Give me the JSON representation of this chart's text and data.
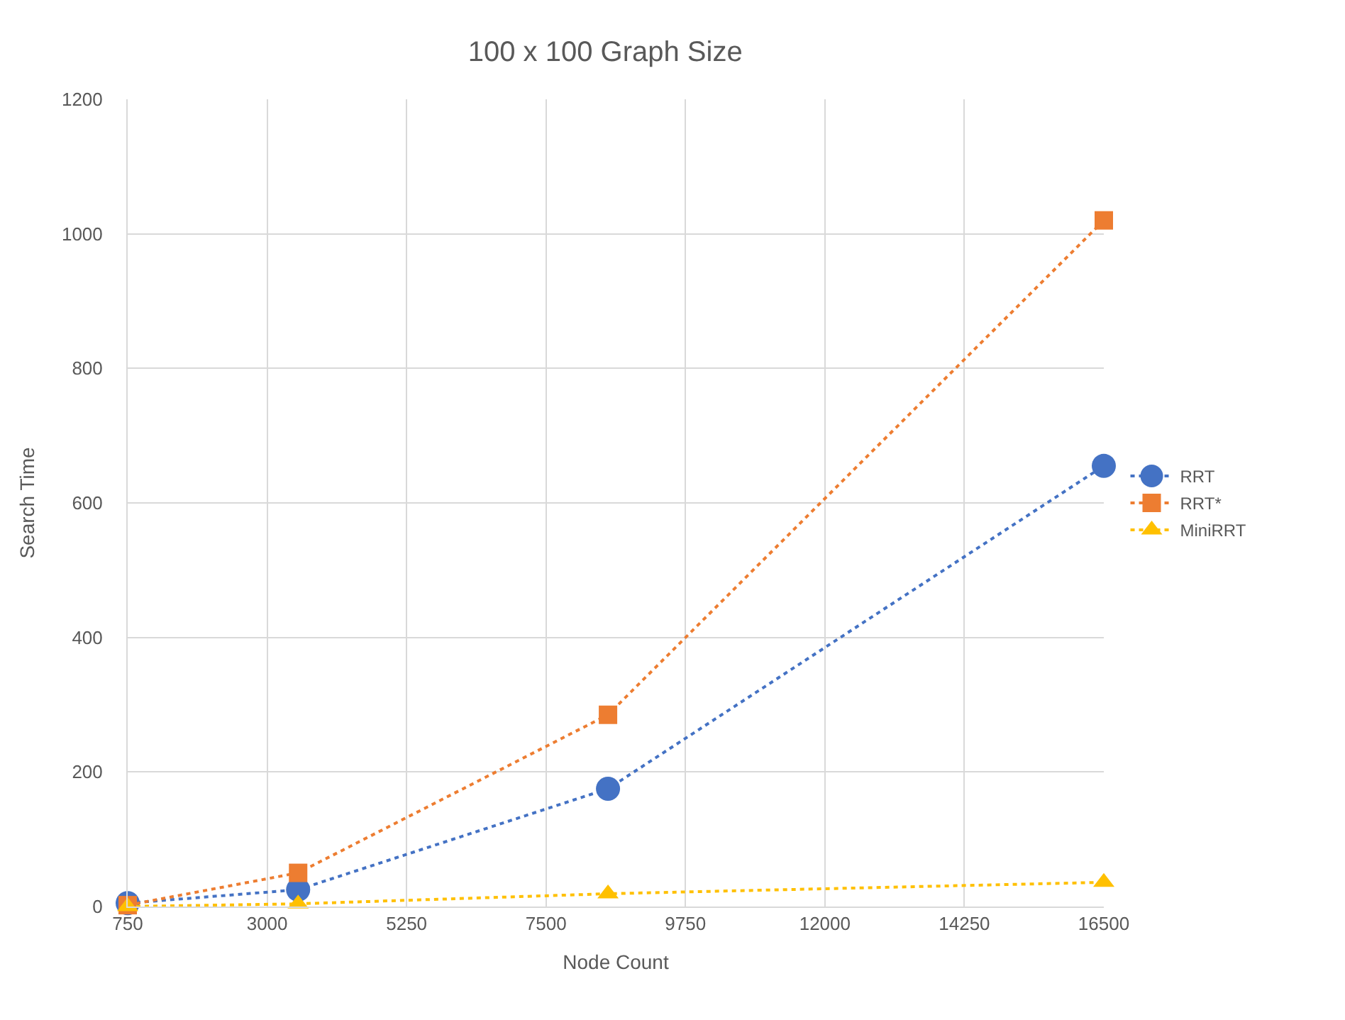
{
  "chart_data": {
    "type": "line",
    "title": "100 x 100 Graph Size",
    "xlabel": "Node Count",
    "ylabel": "Search Time",
    "x": [
      750,
      3500,
      8500,
      16500
    ],
    "series": [
      {
        "name": "RRT",
        "color": "#4472c4",
        "marker": "circle",
        "values": [
          5,
          25,
          175,
          655
        ]
      },
      {
        "name": "RRT*",
        "color": "#ed7d31",
        "marker": "square",
        "values": [
          2,
          50,
          285,
          1020
        ]
      },
      {
        "name": "MiniRRT",
        "color": "#ffc000",
        "marker": "triangle",
        "values": [
          0,
          4,
          19,
          36
        ]
      }
    ],
    "xlim": [
      750,
      16500
    ],
    "xticks": [
      750,
      3000,
      5250,
      7500,
      9750,
      12000,
      14250,
      16500
    ],
    "ylim": [
      0,
      1200
    ],
    "yticks": [
      0,
      200,
      400,
      600,
      800,
      1000,
      1200
    ],
    "grid": true,
    "legend": "right",
    "line_style": "dotted"
  }
}
